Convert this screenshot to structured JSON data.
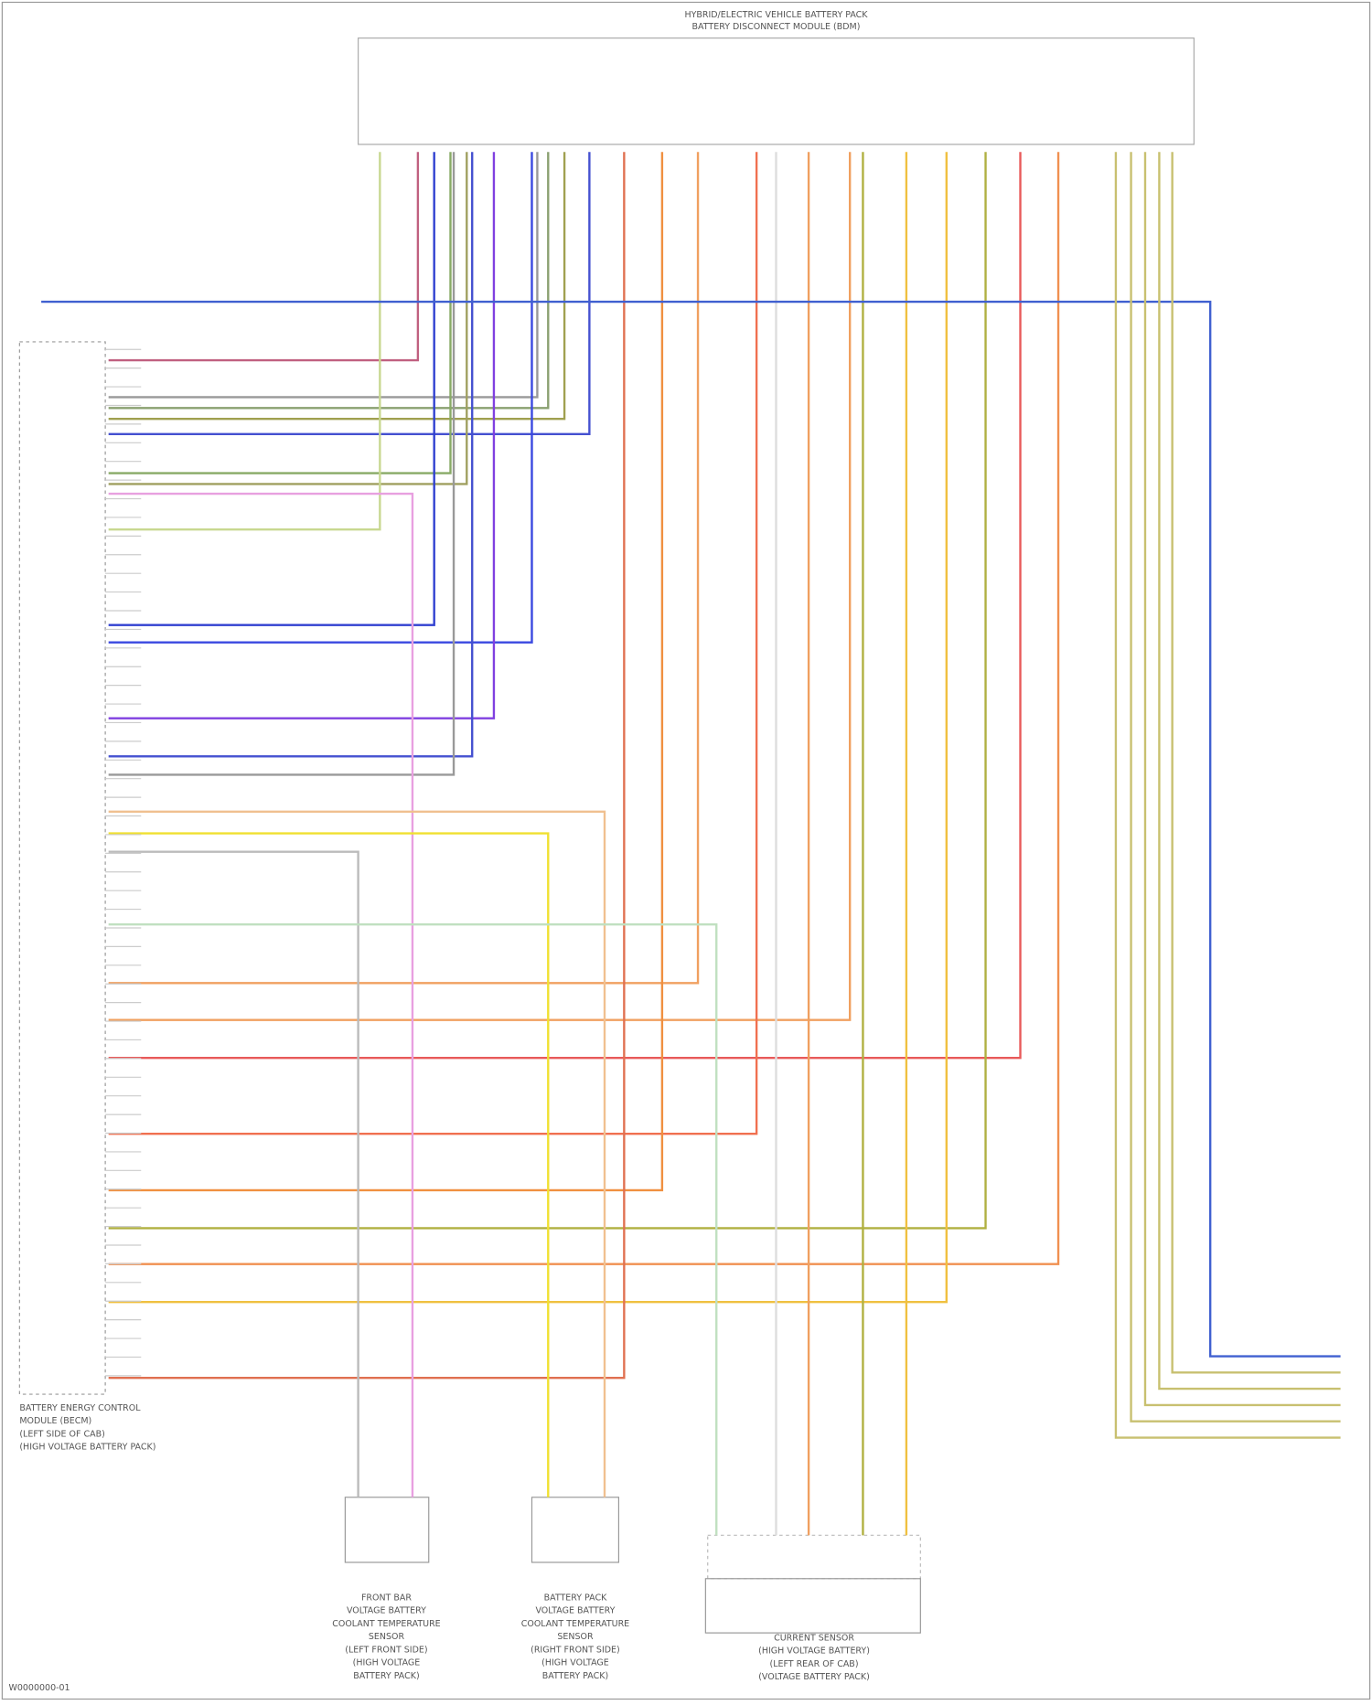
{
  "header": {
    "title": [
      "HYBRID/ELECTRIC VEHICLE BATTERY PACK",
      "BATTERY DISCONNECT MODULE (BDM)"
    ]
  },
  "modules": [
    {
      "label": [
        "BATTERY ENERGY CONTROL",
        "MODULE (BECM)",
        "(LEFT SIDE OF CAB)",
        "(HIGH VOLTAGE BATTERY PACK)"
      ]
    },
    {
      "label": [
        "FRONT BAR",
        "VOLTAGE BATTERY",
        "COOLANT TEMPERATURE",
        "SENSOR",
        "(LEFT FRONT SIDE)",
        "(HIGH VOLTAGE",
        "BATTERY PACK)"
      ]
    },
    {
      "label": [
        "BATTERY PACK",
        "VOLTAGE BATTERY",
        "COOLANT TEMPERATURE",
        "SENSOR",
        "(RIGHT FRONT SIDE)",
        "(HIGH VOLTAGE",
        "BATTERY PACK)"
      ]
    },
    {
      "label": [
        "CURRENT SENSOR",
        "(HIGH VOLTAGE BATTERY)",
        "(LEFT REAR OF CAB)",
        "(VOLTAGE BATTERY PACK)"
      ]
    }
  ],
  "footer": "W0000000-01"
}
